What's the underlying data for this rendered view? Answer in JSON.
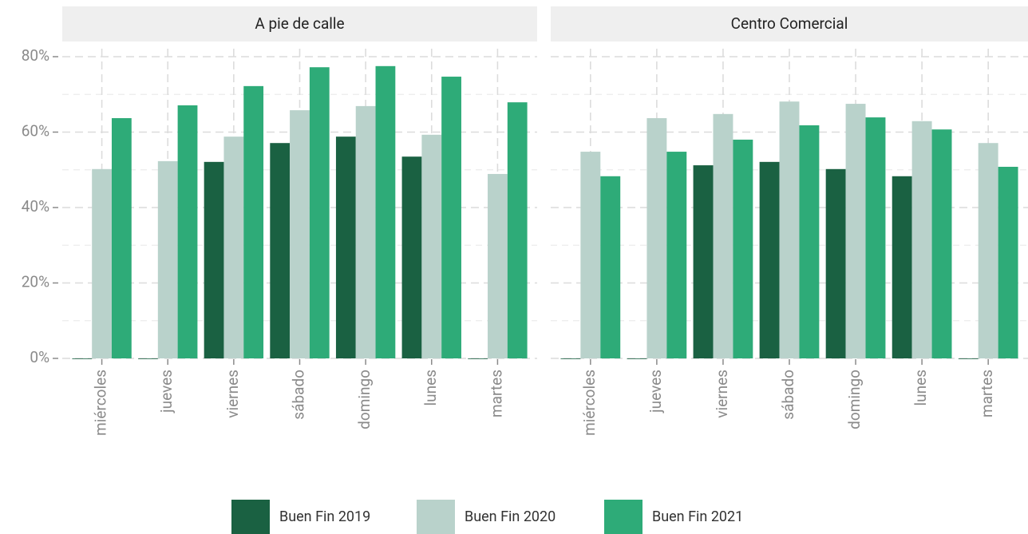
{
  "chart_data": {
    "type": "bar",
    "categories": [
      "miércoles",
      "jueves",
      "viernes",
      "sábado",
      "domingo",
      "lunes",
      "martes"
    ],
    "series": [
      {
        "name": "Buen Fin 2019",
        "color": "#1a6142"
      },
      {
        "name": "Buen Fin 2020",
        "color": "#b9d2cb"
      },
      {
        "name": "Buen Fin 2021",
        "color": "#2eab78"
      }
    ],
    "facets": [
      {
        "title": "A pie de calle",
        "series": [
          {
            "values": [
              0,
              0,
              52.1,
              57.1,
              58.8,
              53.5,
              0
            ]
          },
          {
            "values": [
              50.2,
              52.3,
              58.8,
              65.8,
              66.9,
              59.3,
              48.9
            ]
          },
          {
            "values": [
              63.7,
              67.1,
              72.2,
              77.2,
              77.5,
              74.7,
              67.9
            ]
          }
        ]
      },
      {
        "title": "Centro Comercial",
        "series": [
          {
            "values": [
              0,
              0,
              51.2,
              52.1,
              50.2,
              48.3,
              0
            ]
          },
          {
            "values": [
              54.8,
              63.7,
              64.8,
              68.1,
              67.5,
              62.9,
              57.1
            ]
          },
          {
            "values": [
              48.3,
              54.8,
              58.0,
              61.8,
              63.9,
              60.7,
              50.8
            ]
          }
        ]
      }
    ],
    "ylim": [
      0,
      80
    ],
    "yticks": [
      {
        "value": 0,
        "label": "0%"
      },
      {
        "value": 20,
        "label": "20%"
      },
      {
        "value": 40,
        "label": "40%"
      },
      {
        "value": 60,
        "label": "60%"
      },
      {
        "value": 80,
        "label": "80%"
      }
    ],
    "minor_yticks": [
      10,
      30,
      50,
      70
    ],
    "grid": true
  }
}
